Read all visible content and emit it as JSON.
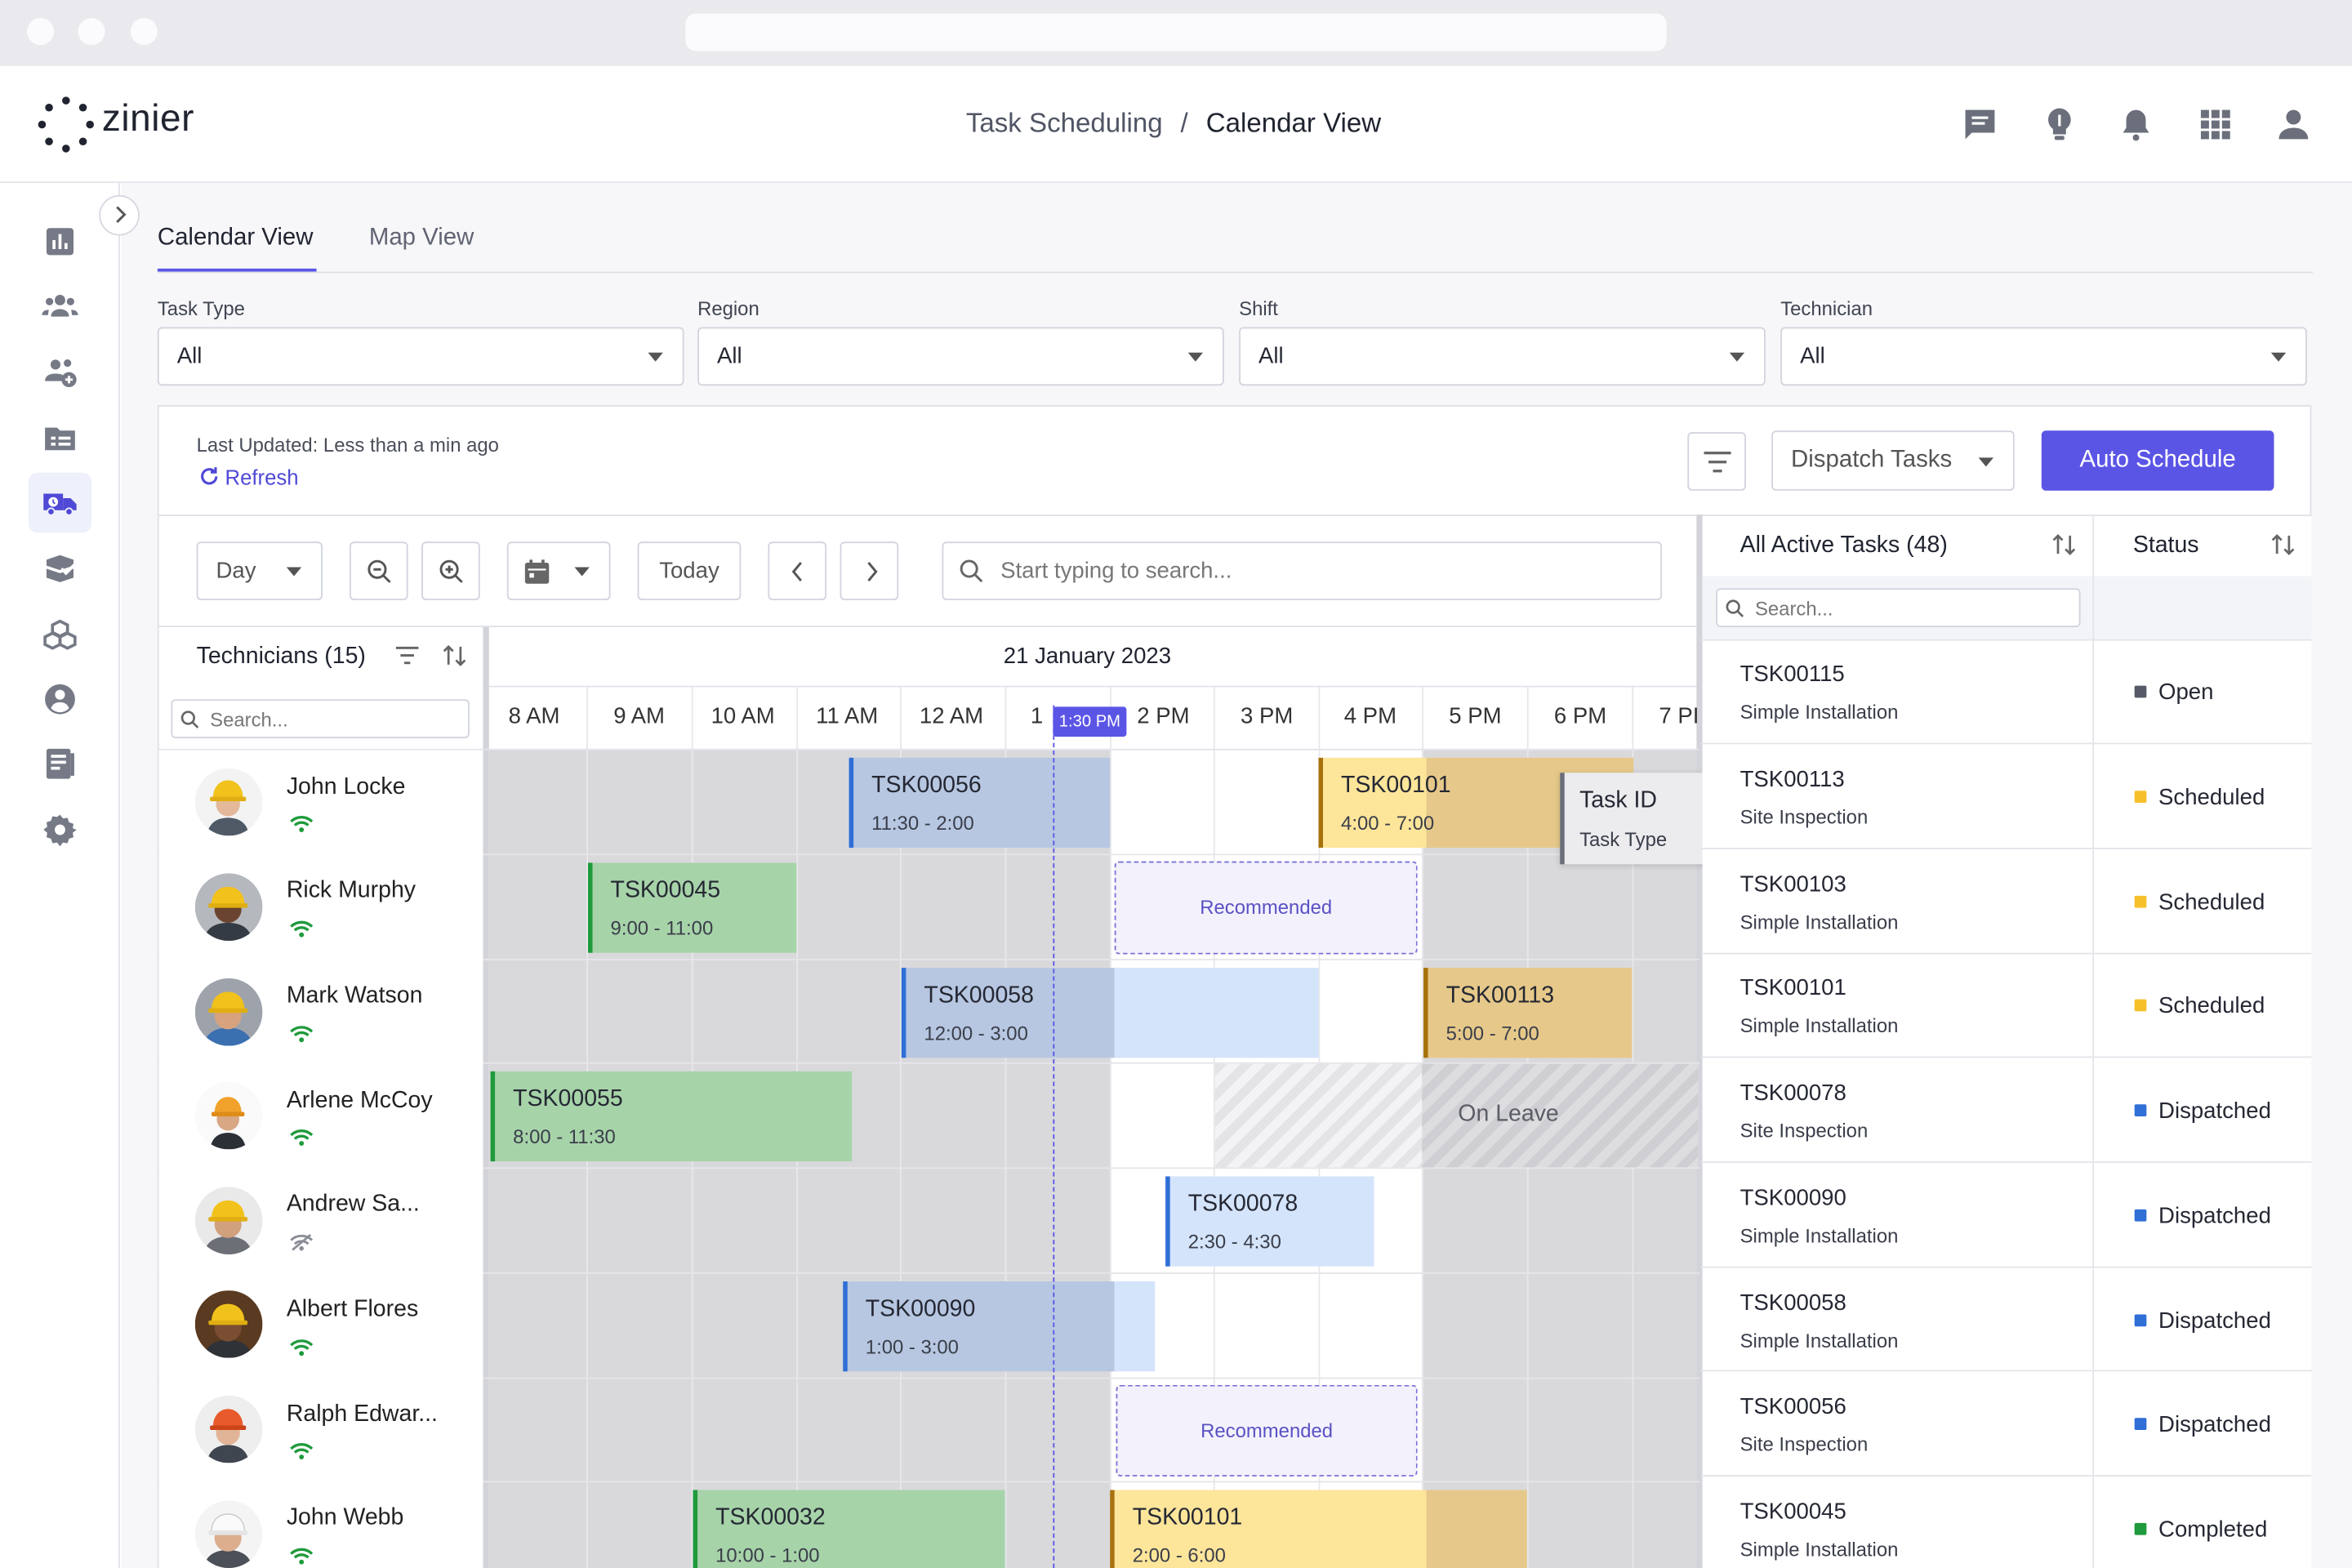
{
  "app": {
    "logo_text": "zinier"
  },
  "breadcrumb": {
    "parent": "Task Scheduling",
    "separator": "/",
    "current": "Calendar View"
  },
  "tabs": [
    {
      "label": "Calendar View"
    },
    {
      "label": "Map View"
    }
  ],
  "filters": [
    {
      "label": "Task Type",
      "value": "All"
    },
    {
      "label": "Region",
      "value": "All"
    },
    {
      "label": "Shift",
      "value": "All"
    },
    {
      "label": "Technician",
      "value": "All"
    }
  ],
  "status_bar": {
    "last_updated": "Last Updated: Less than a min ago",
    "refresh": "Refresh",
    "dispatch": "Dispatch Tasks",
    "auto_schedule": "Auto Schedule"
  },
  "toolbar": {
    "view": "Day",
    "today": "Today",
    "search_placeholder": "Start typing to search..."
  },
  "technicians": {
    "header": "Technicians (15)",
    "search_placeholder": "Search...",
    "list": [
      {
        "name": "John Locke",
        "online": true
      },
      {
        "name": "Rick Murphy",
        "online": true
      },
      {
        "name": "Mark Watson",
        "online": true
      },
      {
        "name": "Arlene McCoy",
        "online": true
      },
      {
        "name": "Andrew Sa...",
        "online": false
      },
      {
        "name": "Albert Flores",
        "online": true
      },
      {
        "name": "Ralph Edwar...",
        "online": true
      },
      {
        "name": "John Webb",
        "online": true
      }
    ]
  },
  "calendar": {
    "date": "21 January 2023",
    "hours": [
      "8 AM",
      "9 AM",
      "10 AM",
      "11 AM",
      "12 AM",
      "1",
      "2 PM",
      "3 PM",
      "4 PM",
      "5 PM",
      "6 PM",
      "7 PI"
    ],
    "now_label": "1:30 PM",
    "tasks": [
      {
        "id": "TSK00056",
        "time": "11:30 - 2:00"
      },
      {
        "id": "TSK00101",
        "time": "4:00 - 7:00"
      },
      {
        "id": "TSK00045",
        "time": "9:00 - 11:00"
      },
      {
        "id": "TSK00058",
        "time": "12:00 - 3:00"
      },
      {
        "id": "TSK00113",
        "time": "5:00 - 7:00"
      },
      {
        "id": "TSK00055",
        "time": "8:00 - 11:30"
      },
      {
        "id": "TSK00078",
        "time": "2:30 - 4:30"
      },
      {
        "id": "TSK00090",
        "time": "1:00 - 3:00"
      },
      {
        "id": "TSK00032",
        "time": "10:00 - 1:00"
      },
      {
        "id": "TSK00101",
        "time": "2:00 - 6:00"
      }
    ],
    "recommended": "Recommended",
    "on_leave": "On Leave",
    "tooltip": {
      "title": "Task ID",
      "subtitle": "Task Type"
    }
  },
  "active_tasks": {
    "header": "All Active Tasks (48)",
    "status_header": "Status",
    "search_placeholder": "Search...",
    "list": [
      {
        "id": "TSK00115",
        "type": "Simple Installation",
        "status": "Open",
        "color": "#555a66"
      },
      {
        "id": "TSK00113",
        "type": "Site Inspection",
        "status": "Scheduled",
        "color": "#f5c02a"
      },
      {
        "id": "TSK00103",
        "type": "Simple Installation",
        "status": "Scheduled",
        "color": "#f5c02a"
      },
      {
        "id": "TSK00101",
        "type": "Simple Installation",
        "status": "Scheduled",
        "color": "#f5c02a"
      },
      {
        "id": "TSK00078",
        "type": "Site Inspection",
        "status": "Dispatched",
        "color": "#2f6fd6"
      },
      {
        "id": "TSK00090",
        "type": "Simple Installation",
        "status": "Dispatched",
        "color": "#2f6fd6"
      },
      {
        "id": "TSK00058",
        "type": "Simple Installation",
        "status": "Dispatched",
        "color": "#2f6fd6"
      },
      {
        "id": "TSK00056",
        "type": "Site Inspection",
        "status": "Dispatched",
        "color": "#2f6fd6"
      },
      {
        "id": "TSK00045",
        "type": "Simple Installation",
        "status": "Completed",
        "color": "#1f9a3c"
      }
    ]
  },
  "colors": {
    "accent": "#5b55e6",
    "blue_task": "#b7c7e1",
    "green_task": "#a7d3a9",
    "yellow_task": "#fde59a",
    "gold_task": "#e6c98a"
  }
}
